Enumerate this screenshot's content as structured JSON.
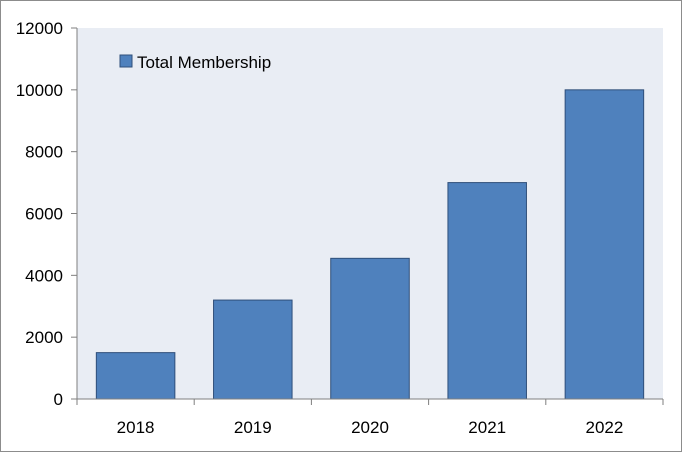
{
  "chart_data": {
    "type": "bar",
    "categories": [
      "2018",
      "2019",
      "2020",
      "2021",
      "2022"
    ],
    "series": [
      {
        "name": "Total Membership",
        "values": [
          1500,
          3200,
          4550,
          7000,
          10000
        ]
      }
    ],
    "y_ticks": [
      "0",
      "2000",
      "4000",
      "6000",
      "8000",
      "10000",
      "12000"
    ],
    "ylim": [
      0,
      12000
    ],
    "grid": false,
    "legend": {
      "position": "top-left",
      "label": "Total Membership"
    },
    "colors": {
      "bar_fill": "#4f81bd",
      "bar_stroke": "#2f4f7a",
      "plot_background": "#e9edf4",
      "axis": "#7f7f7f"
    }
  }
}
